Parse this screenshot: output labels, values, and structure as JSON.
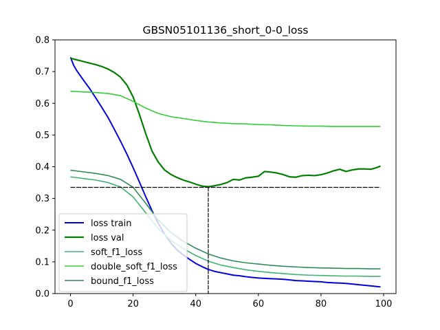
{
  "chart_data": {
    "type": "line",
    "title": "GBSN05101136_short_0-0_loss",
    "xlabel": "",
    "ylabel": "",
    "xlim": [
      -4.95,
      103.95
    ],
    "ylim": [
      0,
      0.8
    ],
    "x_ticks": [
      0,
      20,
      40,
      60,
      80,
      100
    ],
    "y_ticks": [
      0.0,
      0.1,
      0.2,
      0.3,
      0.4,
      0.5,
      0.6,
      0.7,
      0.8
    ],
    "grid": false,
    "legend_position": "lower-left",
    "reference_lines": {
      "horizontal_y": 0.335,
      "vertical_x": 44,
      "color": "#000000"
    },
    "series": [
      {
        "name": "loss train",
        "color": "#0000dd",
        "width": 2,
        "points": [
          [
            0,
            0.745
          ],
          [
            1,
            0.72
          ],
          [
            2,
            0.703
          ],
          [
            4,
            0.675
          ],
          [
            6,
            0.648
          ],
          [
            8,
            0.618
          ],
          [
            10,
            0.587
          ],
          [
            12,
            0.555
          ],
          [
            14,
            0.518
          ],
          [
            16,
            0.48
          ],
          [
            18,
            0.44
          ],
          [
            20,
            0.397
          ],
          [
            22,
            0.352
          ],
          [
            24,
            0.306
          ],
          [
            26,
            0.262
          ],
          [
            28,
            0.222
          ],
          [
            30,
            0.188
          ],
          [
            32,
            0.16
          ],
          [
            34,
            0.138
          ],
          [
            36,
            0.122
          ],
          [
            38,
            0.108
          ],
          [
            40,
            0.095
          ],
          [
            42,
            0.085
          ],
          [
            44,
            0.076
          ],
          [
            46,
            0.07
          ],
          [
            48,
            0.066
          ],
          [
            50,
            0.062
          ],
          [
            52,
            0.058
          ],
          [
            54,
            0.056
          ],
          [
            56,
            0.053
          ],
          [
            58,
            0.051
          ],
          [
            60,
            0.049
          ],
          [
            62,
            0.048
          ],
          [
            64,
            0.047
          ],
          [
            66,
            0.046
          ],
          [
            68,
            0.045
          ],
          [
            70,
            0.043
          ],
          [
            72,
            0.041
          ],
          [
            74,
            0.04
          ],
          [
            76,
            0.039
          ],
          [
            78,
            0.038
          ],
          [
            80,
            0.037
          ],
          [
            82,
            0.035
          ],
          [
            84,
            0.034
          ],
          [
            86,
            0.033
          ],
          [
            88,
            0.032
          ],
          [
            90,
            0.03
          ],
          [
            92,
            0.028
          ],
          [
            94,
            0.026
          ],
          [
            96,
            0.024
          ],
          [
            98,
            0.022
          ],
          [
            99,
            0.021
          ]
        ]
      },
      {
        "name": "loss val",
        "color": "#007f00",
        "width": 2.2,
        "points": [
          [
            0,
            0.742
          ],
          [
            2,
            0.737
          ],
          [
            4,
            0.732
          ],
          [
            6,
            0.727
          ],
          [
            8,
            0.722
          ],
          [
            10,
            0.716
          ],
          [
            12,
            0.708
          ],
          [
            14,
            0.697
          ],
          [
            16,
            0.682
          ],
          [
            18,
            0.658
          ],
          [
            20,
            0.62
          ],
          [
            22,
            0.565
          ],
          [
            24,
            0.505
          ],
          [
            26,
            0.45
          ],
          [
            28,
            0.415
          ],
          [
            30,
            0.39
          ],
          [
            32,
            0.376
          ],
          [
            34,
            0.366
          ],
          [
            36,
            0.358
          ],
          [
            38,
            0.352
          ],
          [
            40,
            0.345
          ],
          [
            42,
            0.339
          ],
          [
            44,
            0.337
          ],
          [
            46,
            0.34
          ],
          [
            48,
            0.344
          ],
          [
            50,
            0.35
          ],
          [
            52,
            0.36
          ],
          [
            54,
            0.358
          ],
          [
            56,
            0.365
          ],
          [
            58,
            0.367
          ],
          [
            60,
            0.37
          ],
          [
            62,
            0.385
          ],
          [
            64,
            0.383
          ],
          [
            66,
            0.38
          ],
          [
            68,
            0.375
          ],
          [
            70,
            0.368
          ],
          [
            72,
            0.367
          ],
          [
            74,
            0.372
          ],
          [
            76,
            0.373
          ],
          [
            78,
            0.372
          ],
          [
            80,
            0.375
          ],
          [
            82,
            0.38
          ],
          [
            84,
            0.387
          ],
          [
            86,
            0.392
          ],
          [
            88,
            0.385
          ],
          [
            90,
            0.39
          ],
          [
            92,
            0.393
          ],
          [
            94,
            0.393
          ],
          [
            96,
            0.392
          ],
          [
            98,
            0.398
          ],
          [
            99,
            0.402
          ]
        ]
      },
      {
        "name": "soft_f1_loss",
        "color": "#3cb371",
        "width": 1.6,
        "points": [
          [
            0,
            0.368
          ],
          [
            4,
            0.363
          ],
          [
            8,
            0.358
          ],
          [
            12,
            0.35
          ],
          [
            16,
            0.336
          ],
          [
            20,
            0.305
          ],
          [
            24,
            0.255
          ],
          [
            28,
            0.205
          ],
          [
            32,
            0.168
          ],
          [
            36,
            0.142
          ],
          [
            40,
            0.12
          ],
          [
            44,
            0.102
          ],
          [
            48,
            0.09
          ],
          [
            52,
            0.082
          ],
          [
            56,
            0.075
          ],
          [
            60,
            0.07
          ],
          [
            64,
            0.066
          ],
          [
            68,
            0.063
          ],
          [
            72,
            0.06
          ],
          [
            76,
            0.058
          ],
          [
            80,
            0.057
          ],
          [
            84,
            0.056
          ],
          [
            88,
            0.055
          ],
          [
            92,
            0.055
          ],
          [
            96,
            0.054
          ],
          [
            99,
            0.054
          ]
        ]
      },
      {
        "name": "double_soft_f1_loss",
        "color": "#32cd32",
        "width": 1.6,
        "points": [
          [
            0,
            0.638
          ],
          [
            4,
            0.636
          ],
          [
            8,
            0.634
          ],
          [
            12,
            0.631
          ],
          [
            16,
            0.624
          ],
          [
            20,
            0.606
          ],
          [
            24,
            0.585
          ],
          [
            28,
            0.568
          ],
          [
            32,
            0.558
          ],
          [
            36,
            0.552
          ],
          [
            40,
            0.546
          ],
          [
            44,
            0.541
          ],
          [
            48,
            0.538
          ],
          [
            52,
            0.536
          ],
          [
            56,
            0.535
          ],
          [
            60,
            0.533
          ],
          [
            64,
            0.532
          ],
          [
            68,
            0.53
          ],
          [
            72,
            0.529
          ],
          [
            76,
            0.528
          ],
          [
            80,
            0.528
          ],
          [
            84,
            0.527
          ],
          [
            88,
            0.527
          ],
          [
            92,
            0.527
          ],
          [
            96,
            0.527
          ],
          [
            99,
            0.527
          ]
        ]
      },
      {
        "name": "bound_f1_loss",
        "color": "#2e8b57",
        "width": 1.6,
        "points": [
          [
            0,
            0.389
          ],
          [
            4,
            0.384
          ],
          [
            8,
            0.379
          ],
          [
            12,
            0.372
          ],
          [
            16,
            0.36
          ],
          [
            20,
            0.335
          ],
          [
            24,
            0.285
          ],
          [
            28,
            0.232
          ],
          [
            32,
            0.193
          ],
          [
            36,
            0.165
          ],
          [
            40,
            0.143
          ],
          [
            44,
            0.125
          ],
          [
            48,
            0.112
          ],
          [
            52,
            0.103
          ],
          [
            56,
            0.097
          ],
          [
            60,
            0.093
          ],
          [
            64,
            0.089
          ],
          [
            68,
            0.086
          ],
          [
            72,
            0.084
          ],
          [
            76,
            0.082
          ],
          [
            80,
            0.081
          ],
          [
            84,
            0.08
          ],
          [
            88,
            0.079
          ],
          [
            92,
            0.079
          ],
          [
            96,
            0.078
          ],
          [
            99,
            0.078
          ]
        ]
      }
    ]
  }
}
